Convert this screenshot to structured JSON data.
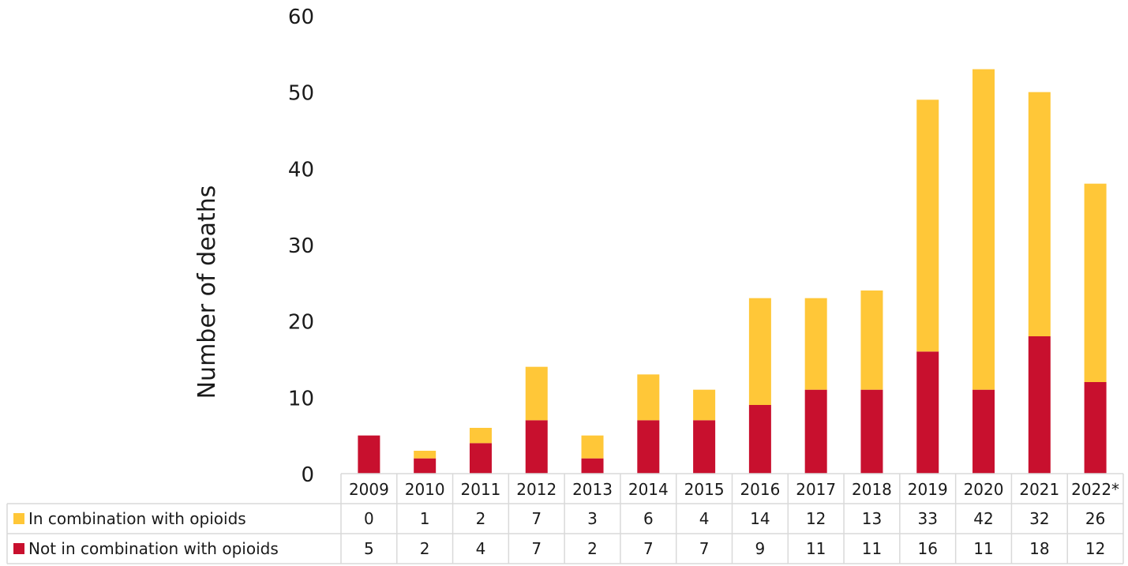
{
  "chart_data": {
    "type": "bar",
    "stacked": true,
    "ylabel": "Number of deaths",
    "ylim": [
      0,
      60
    ],
    "yticks": [
      "0",
      "10",
      "20",
      "30",
      "40",
      "50",
      "60"
    ],
    "categories": [
      "2009",
      "2010",
      "2011",
      "2012",
      "2013",
      "2014",
      "2015",
      "2016",
      "2017",
      "2018",
      "2019",
      "2020",
      "2021",
      "2022*"
    ],
    "series": [
      {
        "name": "Not in combination with opioids",
        "color": "#C8102E",
        "values": [
          5,
          2,
          4,
          7,
          2,
          7,
          7,
          9,
          11,
          11,
          16,
          11,
          18,
          12
        ]
      },
      {
        "name": "In combination with opioids",
        "color": "#FFC738",
        "values": [
          0,
          1,
          2,
          7,
          3,
          6,
          4,
          14,
          12,
          13,
          33,
          42,
          32,
          26
        ]
      }
    ],
    "table_rows": [
      {
        "label": "In combination with opioids",
        "color": "#FFC738",
        "values": [
          "0",
          "1",
          "2",
          "7",
          "3",
          "6",
          "4",
          "14",
          "12",
          "13",
          "33",
          "42",
          "32",
          "26"
        ]
      },
      {
        "label": "Not in combination with opioids",
        "color": "#C8102E",
        "values": [
          "5",
          "2",
          "4",
          "7",
          "2",
          "7",
          "7",
          "9",
          "11",
          "11",
          "16",
          "11",
          "18",
          "12"
        ]
      }
    ],
    "grid": false,
    "legend": "data-table"
  }
}
